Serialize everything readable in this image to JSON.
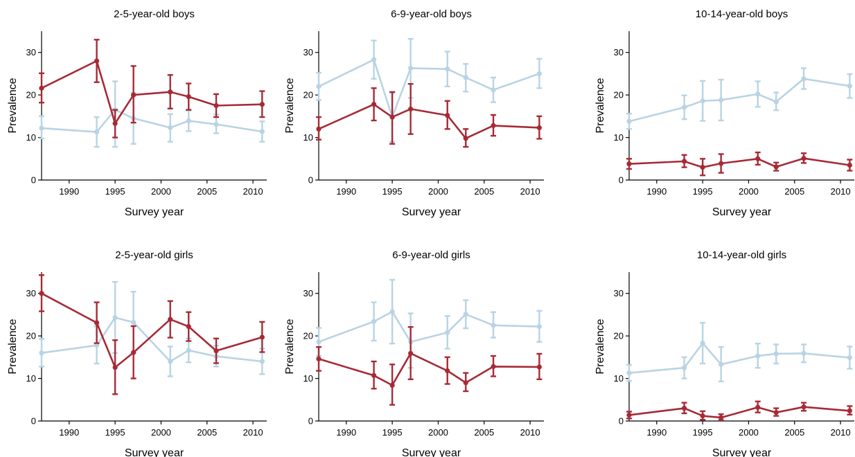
{
  "colors": {
    "series_a": "#a62a36",
    "series_b": "#b9d3e3"
  },
  "chart_data": [
    {
      "type": "line",
      "title": "2-5-year-old boys",
      "xlabel": "Survey year",
      "ylabel": "Prevalence",
      "xlim": [
        1987,
        2011.5
      ],
      "ylim": [
        0,
        35
      ],
      "xticks": [
        1990,
        1995,
        2000,
        2005,
        2010
      ],
      "yticks": [
        0,
        10,
        20,
        30
      ],
      "series": [
        {
          "color": "series_b",
          "points": [
            {
              "x": 1987,
              "y": 12.2,
              "lo": 9.8,
              "hi": 15.0
            },
            {
              "x": 1993,
              "y": 11.3,
              "lo": 7.8,
              "hi": 14.8
            },
            {
              "x": 1995,
              "y": 16.5,
              "lo": 7.8,
              "hi": 23.2
            },
            {
              "x": 1997,
              "y": 14.5,
              "lo": 8.5,
              "hi": 20.5
            },
            {
              "x": 2001,
              "y": 12.3,
              "lo": 9.0,
              "hi": 15.5
            },
            {
              "x": 2003,
              "y": 13.9,
              "lo": 11.5,
              "hi": 16.3
            },
            {
              "x": 2006,
              "y": 13.1,
              "lo": 11.0,
              "hi": 15.4
            },
            {
              "x": 2011,
              "y": 11.4,
              "lo": 9.0,
              "hi": 13.8
            }
          ]
        },
        {
          "color": "series_a",
          "points": [
            {
              "x": 1987,
              "y": 21.6,
              "lo": 18.2,
              "hi": 25.1
            },
            {
              "x": 1993,
              "y": 28.0,
              "lo": 23.0,
              "hi": 33.0
            },
            {
              "x": 1995,
              "y": 13.3,
              "lo": 10.0,
              "hi": 16.5
            },
            {
              "x": 1997,
              "y": 20.0,
              "lo": 13.5,
              "hi": 26.8
            },
            {
              "x": 2001,
              "y": 20.7,
              "lo": 16.8,
              "hi": 24.7
            },
            {
              "x": 2003,
              "y": 19.6,
              "lo": 16.5,
              "hi": 22.7
            },
            {
              "x": 2006,
              "y": 17.5,
              "lo": 14.8,
              "hi": 20.2
            },
            {
              "x": 2011,
              "y": 17.8,
              "lo": 14.8,
              "hi": 20.9
            }
          ]
        }
      ]
    },
    {
      "type": "line",
      "title": "6-9-year-old  boys",
      "xlabel": "Survey year",
      "ylabel": "Prevalence",
      "xlim": [
        1987,
        2011.5
      ],
      "ylim": [
        0,
        35
      ],
      "xticks": [
        1990,
        1995,
        2000,
        2005,
        2010
      ],
      "yticks": [
        0,
        10,
        20,
        30
      ],
      "series": [
        {
          "color": "series_b",
          "points": [
            {
              "x": 1987,
              "y": 22.0,
              "lo": 18.8,
              "hi": 25.2
            },
            {
              "x": 1993,
              "y": 28.3,
              "lo": 23.8,
              "hi": 32.8
            },
            {
              "x": 1995,
              "y": 14.8,
              "lo": 9.0,
              "hi": 20.5
            },
            {
              "x": 1997,
              "y": 26.3,
              "lo": 19.3,
              "hi": 33.2
            },
            {
              "x": 2001,
              "y": 26.1,
              "lo": 22.0,
              "hi": 30.2
            },
            {
              "x": 2003,
              "y": 24.1,
              "lo": 20.8,
              "hi": 27.3
            },
            {
              "x": 2006,
              "y": 21.2,
              "lo": 18.3,
              "hi": 24.1
            },
            {
              "x": 2011,
              "y": 25.0,
              "lo": 21.6,
              "hi": 28.5
            }
          ]
        },
        {
          "color": "series_a",
          "points": [
            {
              "x": 1987,
              "y": 12.0,
              "lo": 9.5,
              "hi": 14.8
            },
            {
              "x": 1993,
              "y": 17.8,
              "lo": 14.0,
              "hi": 21.6
            },
            {
              "x": 1995,
              "y": 14.8,
              "lo": 8.5,
              "hi": 20.7
            },
            {
              "x": 1997,
              "y": 16.7,
              "lo": 10.8,
              "hi": 22.6
            },
            {
              "x": 2001,
              "y": 15.2,
              "lo": 12.0,
              "hi": 18.6
            },
            {
              "x": 2003,
              "y": 9.8,
              "lo": 7.8,
              "hi": 12.0
            },
            {
              "x": 2006,
              "y": 12.8,
              "lo": 10.4,
              "hi": 15.3
            },
            {
              "x": 2011,
              "y": 12.3,
              "lo": 9.7,
              "hi": 15.0
            }
          ]
        }
      ]
    },
    {
      "type": "line",
      "title": "10-14-year-old boys",
      "xlabel": "Survey year",
      "ylabel": "Prevalence",
      "xlim": [
        1987,
        2011.5
      ],
      "ylim": [
        0,
        35
      ],
      "xticks": [
        1990,
        1995,
        2000,
        2005,
        2010
      ],
      "yticks": [
        0,
        10,
        20,
        30
      ],
      "series": [
        {
          "color": "series_b",
          "points": [
            {
              "x": 1987,
              "y": 13.8,
              "lo": 12.0,
              "hi": 15.6
            },
            {
              "x": 1993,
              "y": 17.1,
              "lo": 14.3,
              "hi": 19.9
            },
            {
              "x": 1995,
              "y": 18.6,
              "lo": 13.9,
              "hi": 23.3
            },
            {
              "x": 1997,
              "y": 18.8,
              "lo": 14.0,
              "hi": 23.6
            },
            {
              "x": 2001,
              "y": 20.2,
              "lo": 17.2,
              "hi": 23.2
            },
            {
              "x": 2003,
              "y": 18.4,
              "lo": 16.4,
              "hi": 20.6
            },
            {
              "x": 2006,
              "y": 23.8,
              "lo": 21.4,
              "hi": 26.3
            },
            {
              "x": 2011,
              "y": 22.1,
              "lo": 19.3,
              "hi": 24.9
            }
          ]
        },
        {
          "color": "series_a",
          "points": [
            {
              "x": 1987,
              "y": 3.8,
              "lo": 2.6,
              "hi": 5.0
            },
            {
              "x": 1993,
              "y": 4.4,
              "lo": 3.0,
              "hi": 5.9
            },
            {
              "x": 1995,
              "y": 3.0,
              "lo": 1.1,
              "hi": 5.0
            },
            {
              "x": 1997,
              "y": 3.9,
              "lo": 1.7,
              "hi": 6.1
            },
            {
              "x": 2001,
              "y": 5.0,
              "lo": 3.6,
              "hi": 6.5
            },
            {
              "x": 2003,
              "y": 3.1,
              "lo": 2.2,
              "hi": 4.1
            },
            {
              "x": 2006,
              "y": 5.1,
              "lo": 4.0,
              "hi": 6.3
            },
            {
              "x": 2011,
              "y": 3.5,
              "lo": 2.2,
              "hi": 4.8
            }
          ]
        }
      ]
    },
    {
      "type": "line",
      "title": "2-5-year-old girls",
      "xlabel": "Survey year",
      "ylabel": "Prevalence",
      "xlim": [
        1987,
        2011.5
      ],
      "ylim": [
        0,
        35
      ],
      "xticks": [
        1990,
        1995,
        2000,
        2005,
        2010
      ],
      "yticks": [
        0,
        10,
        20,
        30
      ],
      "series": [
        {
          "color": "series_b",
          "points": [
            {
              "x": 1987,
              "y": 16.0,
              "lo": 12.8,
              "hi": 19.3
            },
            {
              "x": 1993,
              "y": 17.8,
              "lo": 13.5,
              "hi": 22.3
            },
            {
              "x": 1995,
              "y": 24.3,
              "lo": 16.0,
              "hi": 32.7
            },
            {
              "x": 1997,
              "y": 23.2,
              "lo": 16.0,
              "hi": 30.4
            },
            {
              "x": 2001,
              "y": 14.0,
              "lo": 10.5,
              "hi": 17.5
            },
            {
              "x": 2003,
              "y": 16.6,
              "lo": 13.8,
              "hi": 19.4
            },
            {
              "x": 2006,
              "y": 15.2,
              "lo": 12.8,
              "hi": 17.7
            },
            {
              "x": 2011,
              "y": 14.0,
              "lo": 11.0,
              "hi": 17.0
            }
          ]
        },
        {
          "color": "series_a",
          "points": [
            {
              "x": 1987,
              "y": 30.0,
              "lo": 25.8,
              "hi": 34.3
            },
            {
              "x": 1993,
              "y": 23.1,
              "lo": 18.3,
              "hi": 27.9
            },
            {
              "x": 1995,
              "y": 12.6,
              "lo": 6.3,
              "hi": 19.0
            },
            {
              "x": 1997,
              "y": 16.1,
              "lo": 10.0,
              "hi": 22.3
            },
            {
              "x": 2001,
              "y": 23.9,
              "lo": 19.6,
              "hi": 28.2
            },
            {
              "x": 2003,
              "y": 22.2,
              "lo": 18.8,
              "hi": 25.6
            },
            {
              "x": 2006,
              "y": 16.5,
              "lo": 13.6,
              "hi": 19.4
            },
            {
              "x": 2011,
              "y": 19.7,
              "lo": 16.2,
              "hi": 23.3
            }
          ]
        }
      ]
    },
    {
      "type": "line",
      "title": "6-9-year-old girls",
      "xlabel": "Survey year",
      "ylabel": "Prevalence",
      "xlim": [
        1987,
        2011.5
      ],
      "ylim": [
        0,
        35
      ],
      "xticks": [
        1990,
        1995,
        2000,
        2005,
        2010
      ],
      "yticks": [
        0,
        10,
        20,
        30
      ],
      "series": [
        {
          "color": "series_b",
          "points": [
            {
              "x": 1987,
              "y": 18.6,
              "lo": 15.3,
              "hi": 21.9
            },
            {
              "x": 1993,
              "y": 23.4,
              "lo": 18.9,
              "hi": 27.9
            },
            {
              "x": 1995,
              "y": 25.7,
              "lo": 18.2,
              "hi": 33.2
            },
            {
              "x": 1997,
              "y": 18.6,
              "lo": 12.5,
              "hi": 25.3
            },
            {
              "x": 2001,
              "y": 20.8,
              "lo": 17.0,
              "hi": 24.7
            },
            {
              "x": 2003,
              "y": 25.1,
              "lo": 21.8,
              "hi": 28.4
            },
            {
              "x": 2006,
              "y": 22.5,
              "lo": 19.6,
              "hi": 25.6
            },
            {
              "x": 2011,
              "y": 22.2,
              "lo": 18.6,
              "hi": 25.9
            }
          ]
        },
        {
          "color": "series_a",
          "points": [
            {
              "x": 1987,
              "y": 14.6,
              "lo": 11.8,
              "hi": 17.4
            },
            {
              "x": 1993,
              "y": 10.7,
              "lo": 7.6,
              "hi": 14.0
            },
            {
              "x": 1995,
              "y": 8.4,
              "lo": 3.8,
              "hi": 13.3
            },
            {
              "x": 1997,
              "y": 15.9,
              "lo": 9.8,
              "hi": 22.1
            },
            {
              "x": 2001,
              "y": 11.8,
              "lo": 8.7,
              "hi": 15.0
            },
            {
              "x": 2003,
              "y": 9.0,
              "lo": 7.0,
              "hi": 11.3
            },
            {
              "x": 2006,
              "y": 12.8,
              "lo": 10.5,
              "hi": 15.3
            },
            {
              "x": 2011,
              "y": 12.7,
              "lo": 9.8,
              "hi": 15.8
            }
          ]
        }
      ]
    },
    {
      "type": "line",
      "title": "10-14-year-old girls",
      "xlabel": "Survey year",
      "ylabel": "Prevalence",
      "xlim": [
        1987,
        2011.5
      ],
      "ylim": [
        0,
        35
      ],
      "xticks": [
        1990,
        1995,
        2000,
        2005,
        2010
      ],
      "yticks": [
        0,
        10,
        20,
        30
      ],
      "series": [
        {
          "color": "series_b",
          "points": [
            {
              "x": 1987,
              "y": 11.3,
              "lo": 9.4,
              "hi": 13.2
            },
            {
              "x": 1993,
              "y": 12.5,
              "lo": 10.0,
              "hi": 15.0
            },
            {
              "x": 1995,
              "y": 18.3,
              "lo": 13.5,
              "hi": 23.1
            },
            {
              "x": 1997,
              "y": 13.3,
              "lo": 9.3,
              "hi": 17.4
            },
            {
              "x": 2001,
              "y": 15.3,
              "lo": 12.5,
              "hi": 18.2
            },
            {
              "x": 2003,
              "y": 15.8,
              "lo": 13.5,
              "hi": 18.0
            },
            {
              "x": 2006,
              "y": 15.9,
              "lo": 13.8,
              "hi": 18.0
            },
            {
              "x": 2011,
              "y": 14.9,
              "lo": 12.3,
              "hi": 17.5
            }
          ]
        },
        {
          "color": "series_a",
          "points": [
            {
              "x": 1987,
              "y": 1.4,
              "lo": 0.6,
              "hi": 2.2
            },
            {
              "x": 1993,
              "y": 3.0,
              "lo": 1.8,
              "hi": 4.3
            },
            {
              "x": 1995,
              "y": 1.2,
              "lo": 0.3,
              "hi": 2.3
            },
            {
              "x": 1997,
              "y": 0.8,
              "lo": 0.2,
              "hi": 1.6
            },
            {
              "x": 2001,
              "y": 3.2,
              "lo": 2.0,
              "hi": 4.6
            },
            {
              "x": 2003,
              "y": 2.0,
              "lo": 1.2,
              "hi": 3.0
            },
            {
              "x": 2006,
              "y": 3.3,
              "lo": 2.4,
              "hi": 4.3
            },
            {
              "x": 2011,
              "y": 2.4,
              "lo": 1.5,
              "hi": 3.5
            }
          ]
        }
      ]
    }
  ]
}
